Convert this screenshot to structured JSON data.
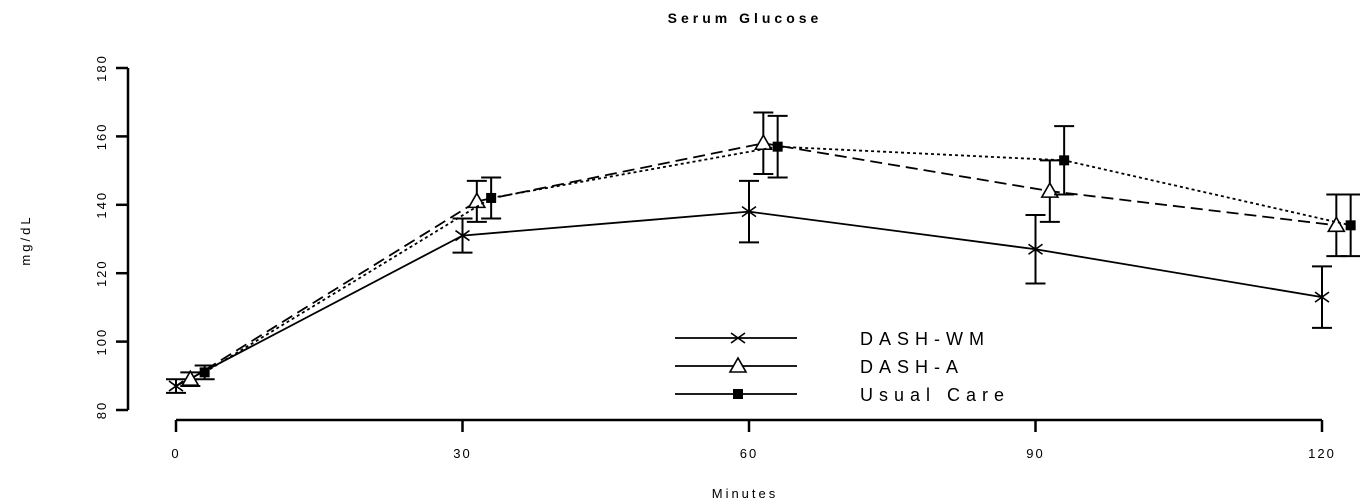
{
  "chart_data": {
    "type": "line",
    "title": "Serum Glucose",
    "xlabel": "Minutes",
    "ylabel": "mg/dL",
    "xlim": [
      0,
      120
    ],
    "ylim": [
      80,
      180
    ],
    "x_ticks": [
      0,
      30,
      60,
      90,
      120
    ],
    "x_tick_labels": [
      "0",
      "30",
      "60",
      "90",
      "120"
    ],
    "y_ticks": [
      80,
      100,
      120,
      140,
      160,
      180
    ],
    "y_tick_labels": [
      "80",
      "100",
      "120",
      "140",
      "160",
      "180"
    ],
    "grid": false,
    "legend_position": "bottom-center",
    "series": [
      {
        "name": "DASH-WM",
        "marker": "x",
        "line_style": "solid",
        "color": "#000000",
        "x": [
          0,
          30,
          60,
          90,
          120
        ],
        "y": [
          87,
          131,
          138,
          127,
          113
        ],
        "error": [
          2,
          5,
          9,
          10,
          9
        ]
      },
      {
        "name": "DASH-A",
        "marker": "triangle",
        "line_style": "dashed",
        "color": "#000000",
        "x": [
          1.5,
          31.5,
          61.5,
          91.5,
          121.5
        ],
        "y": [
          89,
          141,
          158,
          144,
          134
        ],
        "error": [
          2,
          6,
          9,
          9,
          9
        ]
      },
      {
        "name": "Usual Care",
        "marker": "filled-square",
        "line_style": "dotted",
        "color": "#000000",
        "x": [
          3,
          33,
          63,
          93,
          123
        ],
        "y": [
          91,
          142,
          157,
          153,
          134
        ],
        "error": [
          2,
          6,
          9,
          10,
          9
        ]
      }
    ]
  }
}
